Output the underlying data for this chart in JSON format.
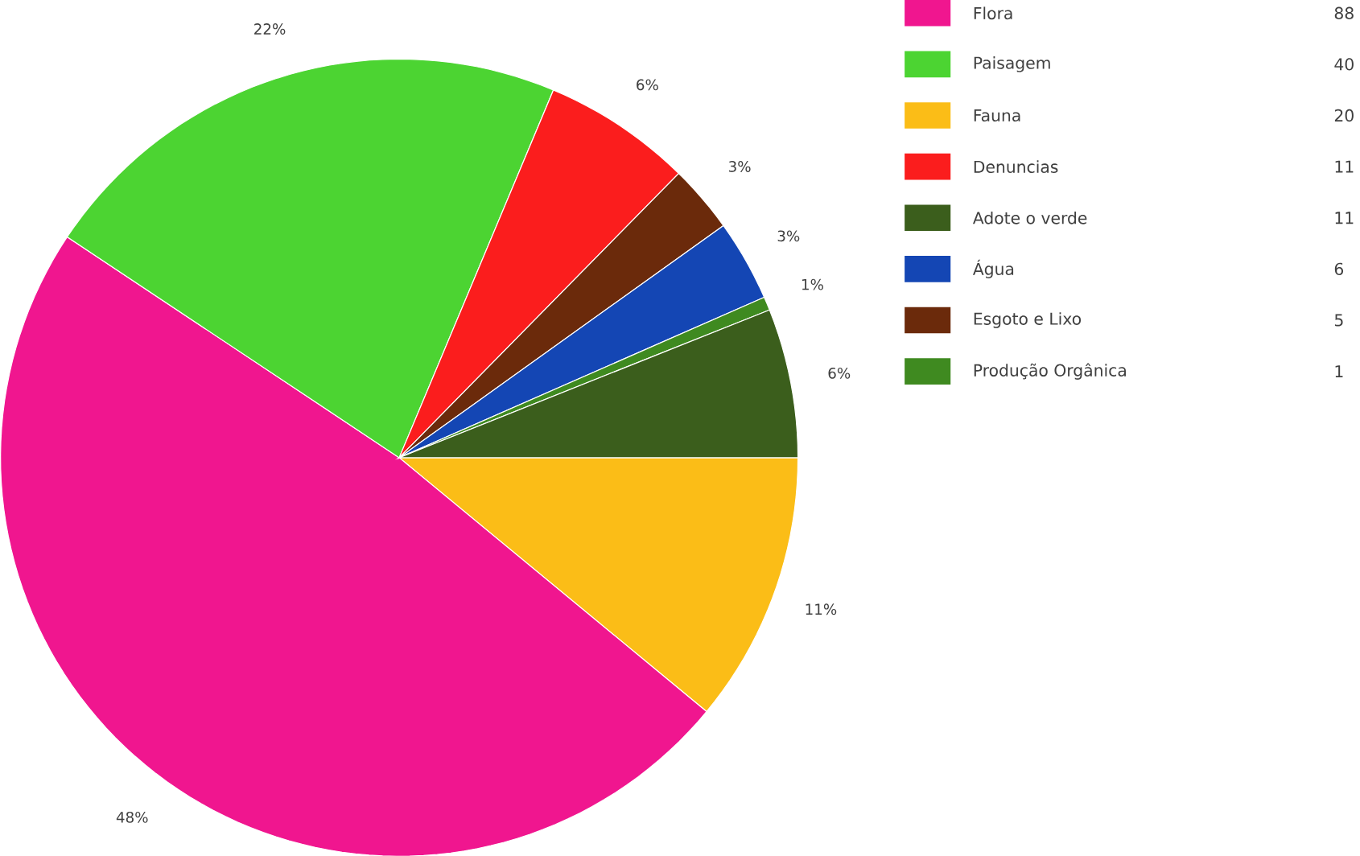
{
  "chart_data": {
    "type": "pie",
    "categories": [
      "Fauna",
      "Flora",
      "Paisagem",
      "Denuncias",
      "Esgoto e Lixo",
      "Água",
      "Produção Orgânica",
      "Adote o verde"
    ],
    "values": [
      20,
      88,
      40,
      11,
      5,
      6,
      1,
      11
    ],
    "colors": [
      "#fbbd17",
      "#f0168f",
      "#4cd432",
      "#fb1d1d",
      "#6b2a0b",
      "#1446b4",
      "#3f8a20",
      "#3b5e1c"
    ],
    "annotations": [
      "11%",
      "48%",
      "22%",
      "6%",
      "3%",
      "3%",
      "1%",
      "6%"
    ],
    "data_labels": true,
    "legend": "top right"
  }
}
